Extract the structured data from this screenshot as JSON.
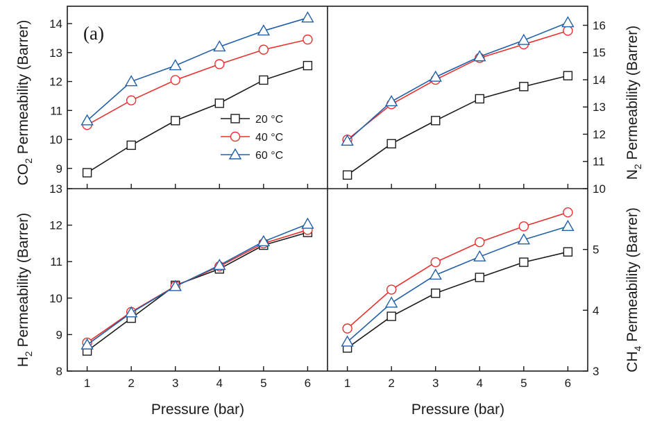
{
  "figure": {
    "panel_label": "(a)",
    "x_axis_title": "Pressure (bar)",
    "legend": [
      "20 °C",
      "40 °C",
      "60 °C"
    ],
    "y_titles": {
      "co2": {
        "pre": "CO",
        "sub": "2",
        "post": " Permeability (Barrer)"
      },
      "h2": {
        "pre": "H",
        "sub": "2",
        "post": " Permeability (Barrer)"
      },
      "n2": {
        "pre": "N",
        "sub": "2",
        "post": " Permeability (Barrer)"
      },
      "ch4": {
        "pre": "CH",
        "sub": "4",
        "post": " Permeability (Barrer)"
      }
    }
  },
  "colors": {
    "20": "#1a1a1a",
    "40": "#e8302d",
    "60": "#1f5fa8",
    "axis": "#1a1a1a"
  },
  "chart_data": [
    {
      "type": "line",
      "id": "co2",
      "x": [
        1,
        2,
        3,
        4,
        5,
        6
      ],
      "ylim": [
        8.3,
        14.6
      ],
      "yticks": [
        9,
        10,
        11,
        12,
        13,
        14
      ],
      "xticks": [
        1,
        2,
        3,
        4,
        5,
        6
      ],
      "series": [
        {
          "name": "20 °C",
          "values": [
            8.85,
            9.8,
            10.65,
            11.25,
            12.05,
            12.55
          ]
        },
        {
          "name": "40 °C",
          "values": [
            10.5,
            11.35,
            12.05,
            12.6,
            13.1,
            13.45
          ]
        },
        {
          "name": "60 °C",
          "values": [
            10.65,
            12.0,
            12.55,
            13.2,
            13.75,
            14.2
          ]
        }
      ]
    },
    {
      "type": "line",
      "id": "n2",
      "x": [
        1,
        2,
        3,
        4,
        5,
        6
      ],
      "ylim": [
        10.0,
        16.7
      ],
      "yticks": [
        10,
        11,
        12,
        13,
        14,
        15,
        16
      ],
      "xticks": [
        1,
        2,
        3,
        4,
        5,
        6
      ],
      "series": [
        {
          "name": "20 °C",
          "values": [
            10.5,
            11.65,
            12.5,
            13.3,
            13.75,
            14.15
          ]
        },
        {
          "name": "40 °C",
          "values": [
            11.8,
            13.1,
            14.0,
            14.8,
            15.3,
            15.8
          ]
        },
        {
          "name": "60 °C",
          "values": [
            11.75,
            13.2,
            14.1,
            14.85,
            15.45,
            16.1
          ]
        }
      ]
    },
    {
      "type": "line",
      "id": "h2",
      "x": [
        1,
        2,
        3,
        4,
        5,
        6
      ],
      "ylim": [
        8.0,
        13.0
      ],
      "yticks": [
        8,
        9,
        10,
        11,
        12,
        13
      ],
      "xticks": [
        1,
        2,
        3,
        4,
        5,
        6
      ],
      "series": [
        {
          "name": "20 °C",
          "values": [
            8.55,
            9.45,
            10.35,
            10.8,
            11.45,
            11.8
          ]
        },
        {
          "name": "40 °C",
          "values": [
            8.78,
            9.62,
            10.33,
            10.87,
            11.5,
            11.87
          ]
        },
        {
          "name": "60 °C",
          "values": [
            8.72,
            9.6,
            10.32,
            10.9,
            11.55,
            12.03
          ]
        }
      ]
    },
    {
      "type": "line",
      "id": "ch4",
      "x": [
        1,
        2,
        3,
        4,
        5,
        6
      ],
      "ylim": [
        3.0,
        6.0
      ],
      "yticks": [
        3,
        4,
        5
      ],
      "xticks": [
        1,
        2,
        3,
        4,
        5,
        6
      ],
      "series": [
        {
          "name": "20 °C",
          "values": [
            3.38,
            3.9,
            4.28,
            4.54,
            4.79,
            4.96
          ]
        },
        {
          "name": "40 °C",
          "values": [
            3.7,
            4.34,
            4.79,
            5.12,
            5.38,
            5.61
          ]
        },
        {
          "name": "60 °C",
          "values": [
            3.48,
            4.12,
            4.58,
            4.88,
            5.16,
            5.38
          ]
        }
      ]
    }
  ]
}
